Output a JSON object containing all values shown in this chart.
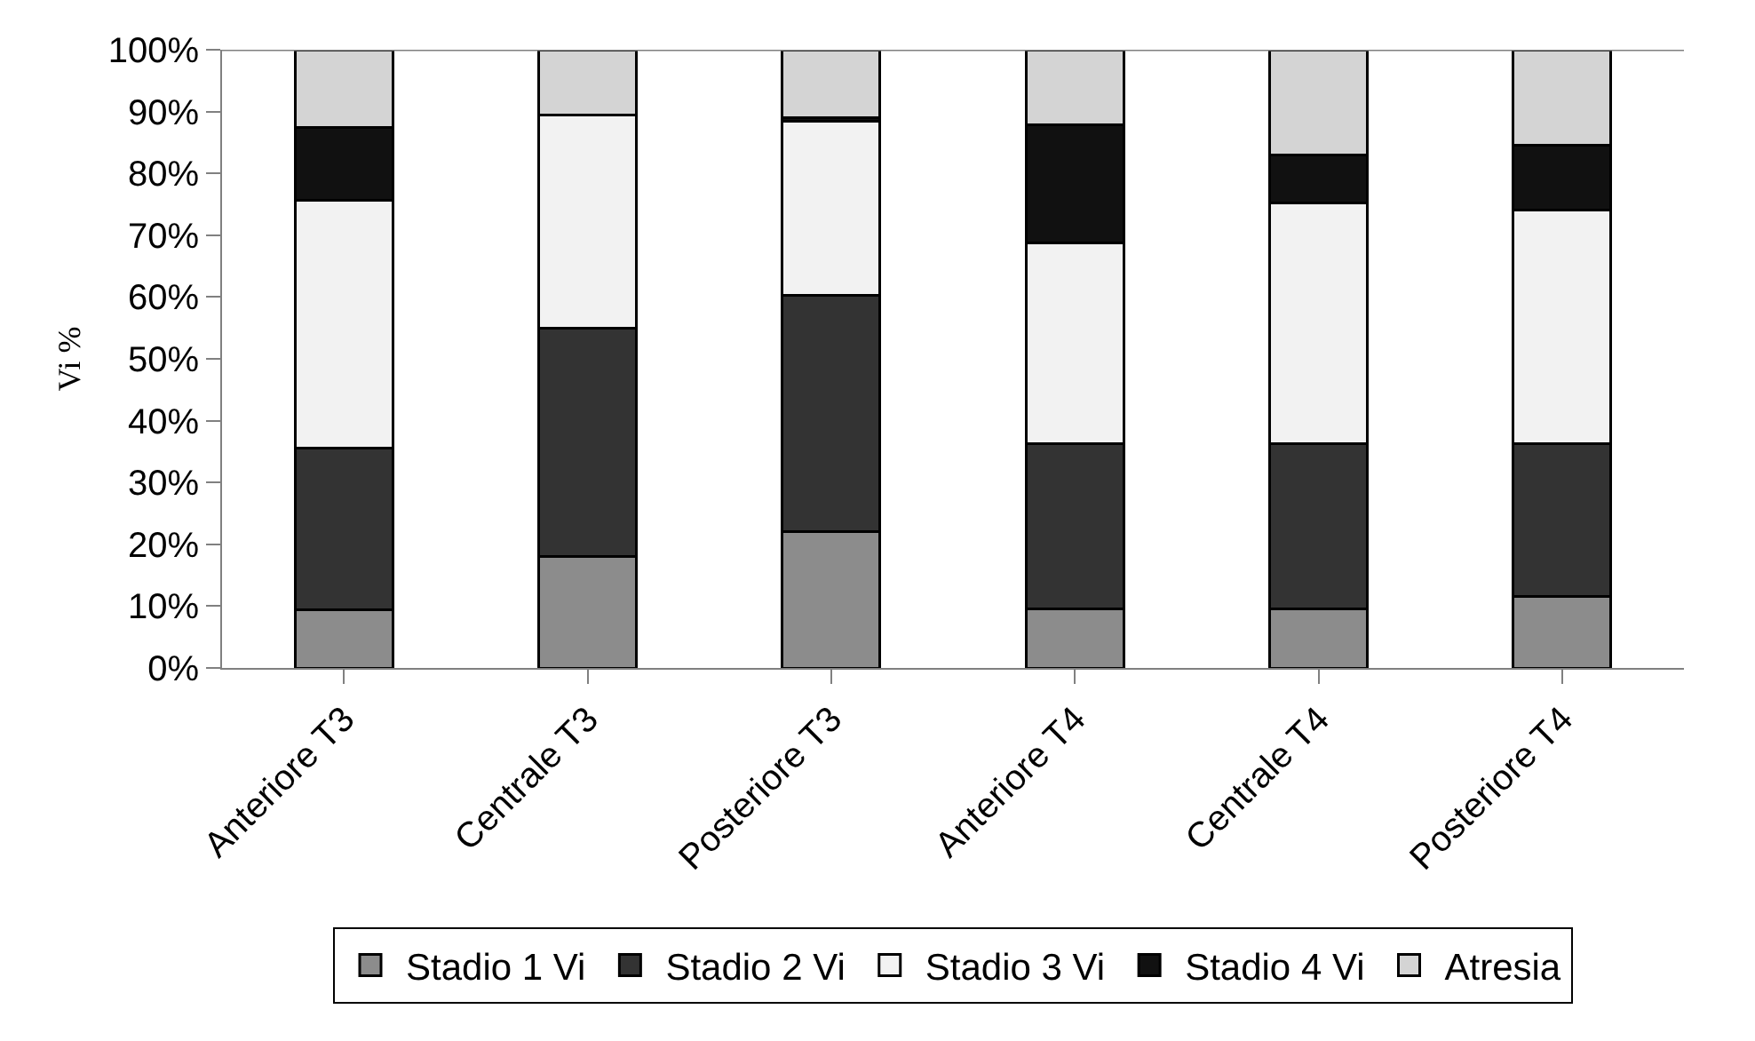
{
  "chart_data": {
    "type": "bar",
    "stacked": true,
    "ylabel": "Vi %",
    "categories": [
      "Anteriore T3",
      "Centrale T3",
      "Posteriore T3",
      "Anteriore T4",
      "Centrale T4",
      "Posteriore T4"
    ],
    "series": [
      {
        "name": "Stadio 1 Vi",
        "color": "#8c8c8c",
        "values": [
          9.4,
          18.1,
          22.1,
          9.6,
          9.6,
          11.5
        ]
      },
      {
        "name": "Stadio 2 Vi",
        "color": "#333333",
        "values": [
          26.1,
          36.9,
          38.2,
          26.7,
          26.7,
          24.8
        ]
      },
      {
        "name": "Stadio 3 Vi",
        "color": "#f2f2f2",
        "values": [
          40.2,
          34.4,
          28.2,
          32.5,
          38.9,
          37.8
        ]
      },
      {
        "name": "Stadio 4 Vi",
        "color": "#111111",
        "values": [
          11.7,
          0,
          0.5,
          19.1,
          7.8,
          10.4
        ]
      },
      {
        "name": "Atresia",
        "color": "#d4d4d4",
        "values": [
          12.6,
          10.6,
          11.0,
          12.1,
          17.0,
          15.5
        ]
      }
    ],
    "ylim": [
      0,
      100
    ],
    "yticks": [
      {
        "value": 0,
        "label": "0%"
      },
      {
        "value": 10,
        "label": "10%"
      },
      {
        "value": 20,
        "label": "20%"
      },
      {
        "value": 30,
        "label": "30%"
      },
      {
        "value": 40,
        "label": "40%"
      },
      {
        "value": 50,
        "label": "50%"
      },
      {
        "value": 60,
        "label": "60%"
      },
      {
        "value": 70,
        "label": "70%"
      },
      {
        "value": 80,
        "label": "80%"
      },
      {
        "value": 90,
        "label": "90%"
      },
      {
        "value": 100,
        "label": "100%"
      }
    ],
    "grid": false,
    "legend": "bottom"
  }
}
